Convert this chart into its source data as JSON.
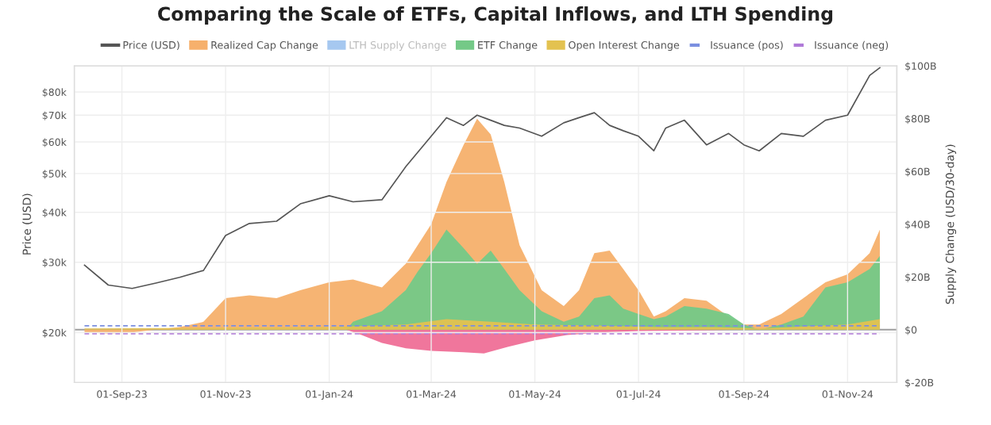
{
  "chart_data": {
    "type": "area",
    "title": "Comparing the Scale of ETFs, Capital Inflows, and LTH Spending",
    "ylabel": "Price (USD)",
    "y2label": "Supply Change (USD/30-day)",
    "log": "y",
    "grid": true,
    "legend": "top",
    "xlim": [
      "2023-08-04",
      "2024-11-30"
    ],
    "xticks": [
      {
        "value": "2023-09-01",
        "label": "01-Sep-23"
      },
      {
        "value": "2023-11-01",
        "label": "01-Nov-23"
      },
      {
        "value": "2024-01-01",
        "label": "01-Jan-24"
      },
      {
        "value": "2024-03-01",
        "label": "01-Mar-24"
      },
      {
        "value": "2024-05-01",
        "label": "01-May-24"
      },
      {
        "value": "2024-07-01",
        "label": "01-Jul-24"
      },
      {
        "value": "2024-09-01",
        "label": "01-Sep-24"
      },
      {
        "value": "2024-11-01",
        "label": "01-Nov-24"
      }
    ],
    "ylim": [
      15000,
      93000
    ],
    "yticks": [
      {
        "value": 20000,
        "label": "$20k"
      },
      {
        "value": 30000,
        "label": "$30k"
      },
      {
        "value": 40000,
        "label": "$40k"
      },
      {
        "value": 50000,
        "label": "$50k"
      },
      {
        "value": 60000,
        "label": "$60k"
      },
      {
        "value": 70000,
        "label": "$70k"
      },
      {
        "value": 80000,
        "label": "$80k"
      }
    ],
    "y2lim": [
      -20,
      100
    ],
    "y2ticks": [
      {
        "value": -20,
        "label": "$-20B"
      },
      {
        "value": 0,
        "label": "$0"
      },
      {
        "value": 20,
        "label": "$20B"
      },
      {
        "value": 40,
        "label": "$40B"
      },
      {
        "value": 60,
        "label": "$60B"
      },
      {
        "value": 80,
        "label": "$80B"
      },
      {
        "value": 100,
        "label": "$100B"
      }
    ],
    "ref_lines": [
      {
        "axis": "y2",
        "value": 0,
        "color": "#9e9e9e"
      }
    ],
    "x": [
      "2023-08-10",
      "2023-08-24",
      "2023-09-07",
      "2023-09-21",
      "2023-10-05",
      "2023-10-19",
      "2023-11-01",
      "2023-11-15",
      "2023-12-01",
      "2023-12-15",
      "2024-01-01",
      "2024-01-15",
      "2024-02-01",
      "2024-02-15",
      "2024-03-01",
      "2024-03-10",
      "2024-03-20",
      "2024-03-28",
      "2024-04-05",
      "2024-04-13",
      "2024-04-22",
      "2024-05-05",
      "2024-05-18",
      "2024-05-27",
      "2024-06-05",
      "2024-06-14",
      "2024-06-22",
      "2024-07-01",
      "2024-07-10",
      "2024-07-17",
      "2024-07-28",
      "2024-08-10",
      "2024-08-23",
      "2024-09-01",
      "2024-09-10",
      "2024-09-23",
      "2024-10-06",
      "2024-10-19",
      "2024-11-01",
      "2024-11-14",
      "2024-11-20"
    ],
    "series": [
      {
        "name": "Price (USD)",
        "type": "line",
        "color": "#555555",
        "values": [
          29500,
          26300,
          25800,
          26600,
          27500,
          28600,
          35000,
          37500,
          38000,
          42000,
          44000,
          42500,
          43000,
          52000,
          62000,
          69000,
          66000,
          70000,
          68000,
          66000,
          65000,
          62000,
          67000,
          69000,
          71000,
          66000,
          64000,
          62000,
          57000,
          65000,
          68000,
          59000,
          63000,
          59000,
          57000,
          63000,
          62000,
          68000,
          70000,
          88000,
          92000
        ]
      },
      {
        "name": "Realized Cap Change",
        "axis": "y2",
        "color": "#f6b06c",
        "values": [
          -1,
          -1.5,
          -1,
          0,
          1,
          3,
          12,
          13,
          12,
          15,
          18,
          19,
          16,
          25,
          40,
          56,
          70,
          80,
          74,
          56,
          32,
          15,
          9,
          15,
          29,
          30,
          23,
          15,
          5,
          7,
          12,
          11,
          5,
          2,
          2,
          6,
          12,
          18,
          21,
          29,
          38
        ]
      },
      {
        "name": "LTH Supply Change",
        "axis": "y2",
        "color": "#a6c8f0",
        "values": [
          null,
          null,
          null,
          null,
          null,
          null,
          null,
          null,
          null,
          null,
          null,
          null,
          null,
          null,
          null,
          null,
          null,
          null,
          null,
          null,
          null,
          null,
          null,
          null,
          null,
          null,
          null,
          null,
          null,
          null,
          null,
          null,
          null,
          null,
          null,
          null,
          null,
          null,
          null,
          null,
          null
        ]
      },
      {
        "name": "ETF Change",
        "axis": "y2",
        "color": "#74c987",
        "x": [
          "2024-01-11",
          "2024-01-15",
          "2024-02-01",
          "2024-02-15",
          "2024-02-22",
          "2024-03-01",
          "2024-03-10",
          "2024-03-20",
          "2024-03-28",
          "2024-04-05",
          "2024-04-13",
          "2024-04-22",
          "2024-05-05",
          "2024-05-18",
          "2024-05-27",
          "2024-06-05",
          "2024-06-14",
          "2024-06-22",
          "2024-07-01",
          "2024-07-10",
          "2024-07-17",
          "2024-07-28",
          "2024-08-10",
          "2024-08-23",
          "2024-09-01",
          "2024-09-10",
          "2024-09-23",
          "2024-10-06",
          "2024-10-19",
          "2024-11-01",
          "2024-11-14",
          "2024-11-20"
        ],
        "values": [
          0,
          3,
          7,
          15,
          22,
          29,
          38,
          31,
          25,
          30,
          23,
          15,
          7,
          3,
          5,
          12,
          13,
          8,
          6,
          4,
          5,
          9,
          8,
          6,
          2,
          0,
          2,
          5,
          16,
          18,
          23,
          28
        ]
      },
      {
        "axis": "y2",
        "color": "#ef6f97",
        "x": [
          "2024-01-11",
          "2024-01-20",
          "2024-02-01",
          "2024-02-15",
          "2024-03-01",
          "2024-03-20",
          "2024-04-01",
          "2024-04-15",
          "2024-05-01",
          "2024-05-20",
          "2024-06-10",
          "2024-07-01",
          "2024-08-01",
          "2024-09-01",
          "2024-11-20"
        ],
        "values": [
          0,
          -2,
          -5,
          -7,
          -8,
          -8.5,
          -9,
          -6.5,
          -4,
          -2,
          -1,
          -0.5,
          -0.3,
          0,
          0
        ]
      },
      {
        "name": "Open Interest Change",
        "axis": "y2",
        "color": "#e3c250",
        "x": [
          "2023-08-10",
          "2024-01-01",
          "2024-02-15",
          "2024-03-10",
          "2024-04-05",
          "2024-05-01",
          "2024-06-10",
          "2024-07-15",
          "2024-08-15",
          "2024-09-10",
          "2024-10-15",
          "2024-11-01",
          "2024-11-20"
        ],
        "values": [
          0.5,
          1,
          2,
          4,
          3,
          2,
          1.5,
          1,
          1,
          0.5,
          1.5,
          2,
          4
        ]
      },
      {
        "name": "Issuance (pos)",
        "type": "line",
        "axis": "y2",
        "line_style": "dashed",
        "color": "#7b8fe0",
        "x": [
          "2023-08-10",
          "2024-11-20"
        ],
        "values": [
          1.5,
          1.5
        ]
      },
      {
        "name": "Issuance (neg)",
        "type": "line",
        "axis": "y2",
        "line_style": "dashed",
        "color": "#b07ad8",
        "x": [
          "2023-08-10",
          "2024-11-20"
        ],
        "values": [
          -1.5,
          -1.5
        ]
      }
    ]
  }
}
